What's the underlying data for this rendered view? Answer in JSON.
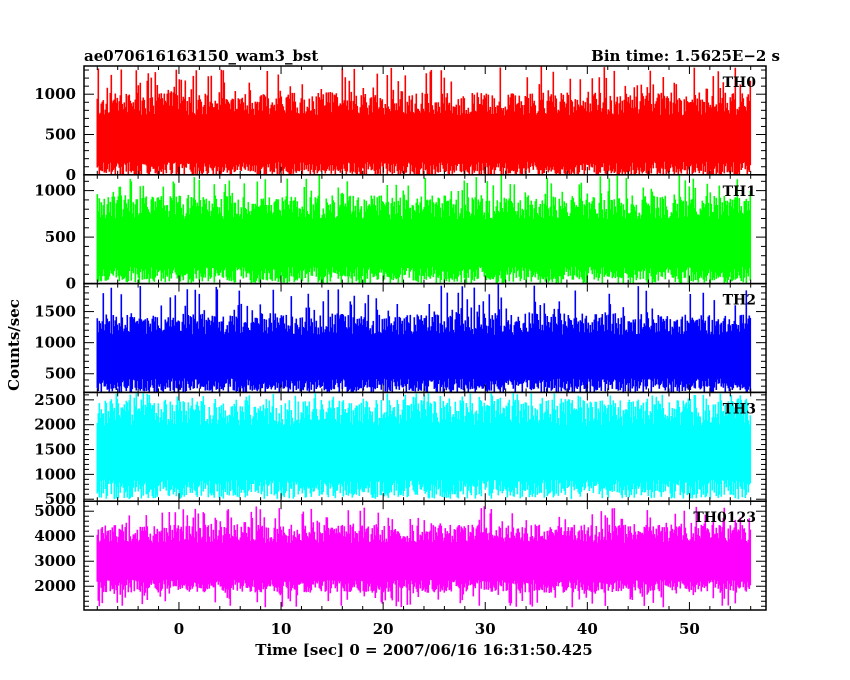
{
  "chart_data": {
    "type": "line",
    "title": "ae070616163150_wam3_bst",
    "subtitle": "Bin time: 1.5625E−2 s",
    "xlabel": "Time [sec] 0 = 2007/06/16 16:31:50.425",
    "ylabel": "Counts/sec",
    "xlim": [
      -9.3,
      57.5
    ],
    "x_range_data": [
      -8.0,
      56.0
    ],
    "xticks": [
      0,
      10,
      20,
      30,
      40,
      50
    ],
    "grid": false,
    "panels": [
      {
        "name": "TH0",
        "color": "#ff0000",
        "ylim": [
          0,
          1350
        ],
        "yticks": [
          0,
          500,
          1000
        ],
        "baseline_low": 60,
        "baseline_high": 880,
        "spike_min": 0,
        "spike_max": 1350
      },
      {
        "name": "TH1",
        "color": "#00ff00",
        "ylim": [
          0,
          1170
        ],
        "yticks": [
          0,
          500,
          1000
        ],
        "baseline_low": 90,
        "baseline_high": 820,
        "spike_min": 0,
        "spike_max": 1170
      },
      {
        "name": "TH2",
        "color": "#0000ff",
        "ylim": [
          200,
          1950
        ],
        "yticks": [
          500,
          1000,
          1500
        ],
        "baseline_low": 300,
        "baseline_high": 1300,
        "spike_min": 220,
        "spike_max": 1950
      },
      {
        "name": "TH3",
        "color": "#00ffff",
        "ylim": [
          460,
          2650
        ],
        "yticks": [
          500,
          1000,
          1500,
          2000,
          2500
        ],
        "baseline_low": 700,
        "baseline_high": 2250,
        "spike_min": 500,
        "spike_max": 2650
      },
      {
        "name": "TH0123",
        "color": "#ff00ff",
        "ylim": [
          1050,
          5400
        ],
        "yticks": [
          2000,
          3000,
          4000,
          5000
        ],
        "baseline_low": 2000,
        "baseline_high": 4100,
        "spike_min": 1150,
        "spike_max": 5200
      }
    ]
  }
}
